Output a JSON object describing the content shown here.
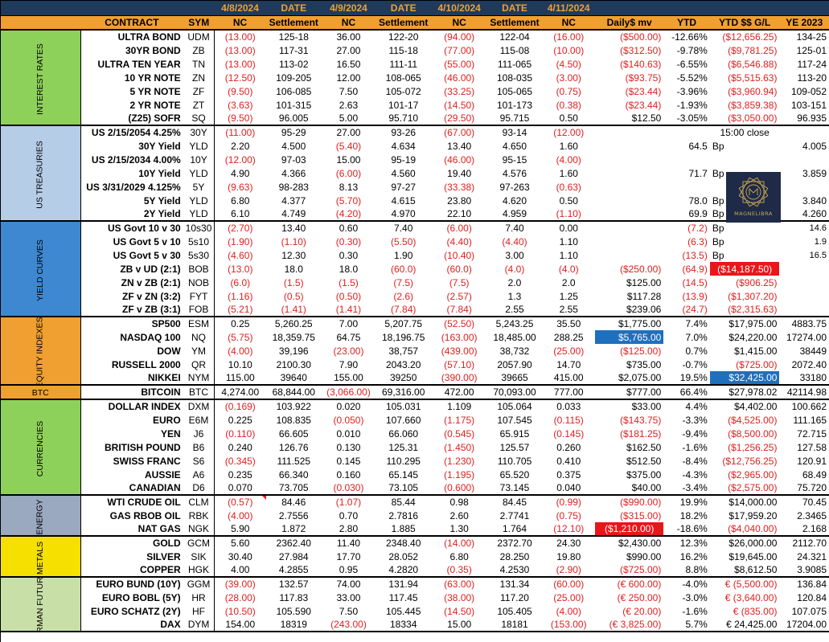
{
  "header": {
    "dates": [
      "4/8/2024",
      "DATE",
      "4/9/2024",
      "DATE",
      "4/10/2024",
      "DATE",
      "4/11/2024"
    ],
    "columns": [
      "CONTRACT",
      "SYM",
      "NC",
      "Settlement",
      "NC",
      "Settlement",
      "NC",
      "Settlement",
      "NC",
      "Daily$ mv",
      "YTD",
      "YTD $$ G/L",
      "YE 2023"
    ]
  },
  "categories": [
    {
      "label": "INTEREST RATES",
      "color": "#8ed15a"
    },
    {
      "label": "US TREASURIES",
      "color": "#b6cde8"
    },
    {
      "label": "YIELD CURVES",
      "color": "#3d88d0"
    },
    {
      "label": "EQUITY INDEXES",
      "color": "#f0a030"
    },
    {
      "label": "BTC",
      "color": "#f0a030"
    },
    {
      "label": "CURRENCIES",
      "color": "#8ed15a"
    },
    {
      "label": "ENERGY",
      "color": "#9aa8c0"
    },
    {
      "label": "METALS",
      "color": "#f5e000"
    },
    {
      "label": "GERMAN FUTURES",
      "color": "#c8e0a8"
    }
  ],
  "logo": {
    "text": "MAGNELIBRA",
    "icon": "magnelibra-logo-icon"
  },
  "rows": [
    {
      "g": 0,
      "c": [
        "ULTRA BOND",
        "UDM",
        "(13.00)",
        "125-18",
        "36.00",
        "122-20",
        "(94.00)",
        "122-04",
        "(16.00)",
        "($500.00)",
        "-12.66%",
        "($12,656.25)",
        "134-25"
      ]
    },
    {
      "g": 0,
      "c": [
        "30YR BOND",
        "ZB",
        "(13.00)",
        "117-31",
        "27.00",
        "115-18",
        "(77.00)",
        "115-08",
        "(10.00)",
        "($312.50)",
        "-9.78%",
        "($9,781.25)",
        "125-01"
      ]
    },
    {
      "g": 0,
      "c": [
        "ULTRA TEN YEAR",
        "TN",
        "(13.00)",
        "113-02",
        "16.50",
        "111-11",
        "(55.00)",
        "111-065",
        "(4.50)",
        "($140.63)",
        "-6.55%",
        "($6,546.88)",
        "117-24"
      ]
    },
    {
      "g": 0,
      "c": [
        "10 YR NOTE",
        "ZN",
        "(12.50)",
        "109-205",
        "12.00",
        "108-065",
        "(46.00)",
        "108-035",
        "(3.00)",
        "($93.75)",
        "-5.52%",
        "($5,515.63)",
        "113-20"
      ]
    },
    {
      "g": 0,
      "c": [
        "5 YR NOTE",
        "ZF",
        "(9.50)",
        "106-085",
        "7.50",
        "105-072",
        "(33.25)",
        "105-065",
        "(0.75)",
        "($23.44)",
        "-3.96%",
        "($3,960.94)",
        "109-052"
      ]
    },
    {
      "g": 0,
      "c": [
        "2 YR NOTE",
        "ZT",
        "(3.63)",
        "101-315",
        "2.63",
        "101-17",
        "(14.50)",
        "101-173",
        "(0.38)",
        "($23.44)",
        "-1.93%",
        "($3,859.38)",
        "103-151"
      ]
    },
    {
      "g": 0,
      "c": [
        "(Z25) SOFR",
        "SQ",
        "(9.50)",
        "96.005",
        "5.00",
        "95.710",
        "(29.50)",
        "95.715",
        "0.50",
        "$12.50",
        "-3.05%",
        "($3,050.00)",
        "96.935"
      ]
    },
    {
      "g": 1,
      "c": [
        "US 2/15/2054 4.25%",
        "30Y",
        "(11.00)",
        "95-29",
        "27.00",
        "93-26",
        "(67.00)",
        "93-14",
        "(12.00)",
        "",
        "",
        "15:00 close",
        ""
      ]
    },
    {
      "g": 1,
      "c": [
        "30Y Yield",
        "YLD",
        "2.20",
        "4.500",
        "(5.40)",
        "4.634",
        "13.40",
        "4.650",
        "1.60",
        "",
        "",
        "",
        ""
      ]
    },
    {
      "g": 1,
      "c": [
        "US 2/15/2034 4.00%",
        "10Y",
        "(12.00)",
        "97-03",
        "15.00",
        "95-19",
        "(46.00)",
        "95-15",
        "(4.00)",
        "",
        "",
        "",
        ""
      ]
    },
    {
      "g": 1,
      "c": [
        "10Y Yield",
        "YLD",
        "4.90",
        "4.366",
        "(6.00)",
        "4.560",
        "19.40",
        "4.576",
        "1.60",
        "",
        "",
        "",
        ""
      ]
    },
    {
      "g": 1,
      "c": [
        "US 3/31/2029 4.125%",
        "5Y",
        "(9.63)",
        "98-283",
        "8.13",
        "97-27",
        "(33.38)",
        "97-263",
        "(0.63)",
        "",
        "",
        "",
        ""
      ]
    },
    {
      "g": 1,
      "c": [
        "5Y Yield",
        "YLD",
        "6.80",
        "4.377",
        "(5.70)",
        "4.615",
        "23.80",
        "4.620",
        "0.50",
        "",
        "",
        "",
        ""
      ]
    },
    {
      "g": 1,
      "c": [
        "2Y Yield",
        "YLD",
        "6.10",
        "4.749",
        "(4.20)",
        "4.970",
        "22.10",
        "4.959",
        "(1.10)",
        "",
        "",
        "",
        ""
      ]
    },
    {
      "g": 2,
      "c": [
        "US Govt 10 v 30",
        "10s30",
        "(2.70)",
        "13.40",
        "0.60",
        "7.40",
        "(6.00)",
        "7.40",
        "0.00",
        "",
        "",
        "",
        ""
      ]
    },
    {
      "g": 2,
      "c": [
        "US Govt 5 v 10",
        "5s10",
        "(1.90)",
        "(1.10)",
        "(0.30)",
        "(5.50)",
        "(4.40)",
        "(4.40)",
        "1.10",
        "",
        "",
        "",
        ""
      ]
    },
    {
      "g": 2,
      "c": [
        "US Govt 5 v 30",
        "5s30",
        "(4.60)",
        "12.30",
        "0.30",
        "1.90",
        "(10.40)",
        "3.00",
        "1.10",
        "",
        "",
        "",
        ""
      ]
    },
    {
      "g": 2,
      "c": [
        "ZB v UD (2:1)",
        "BOB",
        "(13.0)",
        "18.0",
        "18.0",
        "(60.0)",
        "(60.0)",
        "(4.0)",
        "(4.0)",
        "($250.00)",
        "(64.9)",
        "($14,187.50)",
        ""
      ]
    },
    {
      "g": 2,
      "c": [
        "ZN v ZB (2:1)",
        "NOB",
        "(6.0)",
        "(1.5)",
        "(1.5)",
        "(7.5)",
        "(7.5)",
        "2.0",
        "2.0",
        "$125.00",
        "(14.5)",
        "($906.25)",
        ""
      ]
    },
    {
      "g": 2,
      "c": [
        "ZF v ZN (3:2)",
        "FYT",
        "(1.16)",
        "(0.5)",
        "(0.50)",
        "(2.6)",
        "(2.57)",
        "1.3",
        "1.25",
        "$117.28",
        "(13.9)",
        "($1,307.20)",
        ""
      ]
    },
    {
      "g": 2,
      "c": [
        "ZF v ZB (3:1)",
        "FOB",
        "(5.21)",
        "(1.41)",
        "(1.41)",
        "(7.84)",
        "(7.84)",
        "2.55",
        "2.55",
        "$239.06",
        "(24.7)",
        "($2,315.63)",
        ""
      ]
    },
    {
      "g": 3,
      "c": [
        "SP500",
        "ESM",
        "0.25",
        "5,260.25",
        "7.00",
        "5,207.75",
        "(52.50)",
        "5,243.25",
        "35.50",
        "$1,775.00",
        "7.4%",
        "$17,975.00",
        "4883.75"
      ]
    },
    {
      "g": 3,
      "c": [
        "NASDAQ 100",
        "NQ",
        "(5.75)",
        "18,359.75",
        "64.75",
        "18,196.75",
        "(163.00)",
        "18,485.00",
        "288.25",
        "$5,765.00",
        "7.0%",
        "$24,220.00",
        "17274.00"
      ]
    },
    {
      "g": 3,
      "c": [
        "DOW",
        "YM",
        "(4.00)",
        "39,196",
        "(23.00)",
        "38,757",
        "(439.00)",
        "38,732",
        "(25.00)",
        "($125.00)",
        "0.7%",
        "$1,415.00",
        "38449"
      ]
    },
    {
      "g": 3,
      "c": [
        "RUSSELL 2000",
        "QR",
        "10.10",
        "2100.30",
        "7.90",
        "2043.20",
        "(57.10)",
        "2057.90",
        "14.70",
        "$735.00",
        "-0.7%",
        "($725.00)",
        "2072.40"
      ]
    },
    {
      "g": 3,
      "c": [
        "NIKKEI",
        "NYM",
        "115.00",
        "39640",
        "155.00",
        "39250",
        "(390.00)",
        "39665",
        "415.00",
        "$2,075.00",
        "19.5%",
        "$32,425.00",
        "33180"
      ]
    },
    {
      "g": 4,
      "c": [
        "BITCOIN",
        "BTC",
        "4,274.00",
        "68,844.00",
        "(3,066.00)",
        "69,316.00",
        "472.00",
        "70,093.00",
        "777.00",
        "$777.00",
        "66.4%",
        "$27,978.02",
        "42114.98"
      ]
    },
    {
      "g": 5,
      "c": [
        "DOLLAR INDEX",
        "DXM",
        "(0.169)",
        "103.922",
        "0.020",
        "105.031",
        "1.109",
        "105.064",
        "0.033",
        "$33.00",
        "4.4%",
        "$4,402.00",
        "100.662"
      ]
    },
    {
      "g": 5,
      "c": [
        "EURO",
        "E6M",
        "0.225",
        "108.835",
        "(0.050)",
        "107.660",
        "(1.175)",
        "107.545",
        "(0.115)",
        "($143.75)",
        "-3.3%",
        "($4,525.00)",
        "111.165"
      ]
    },
    {
      "g": 5,
      "c": [
        "YEN",
        "J6",
        "(0.110)",
        "66.605",
        "0.010",
        "66.060",
        "(0.545)",
        "65.915",
        "(0.145)",
        "($181.25)",
        "-9.4%",
        "($8,500.00)",
        "72.715"
      ]
    },
    {
      "g": 5,
      "c": [
        "BRITISH POUND",
        "B6",
        "0.240",
        "126.76",
        "0.130",
        "125.31",
        "(1.450)",
        "125.57",
        "0.260",
        "$162.50",
        "-1.6%",
        "($1,256.25)",
        "127.58"
      ]
    },
    {
      "g": 5,
      "c": [
        "SWISS FRANC",
        "S6",
        "(0.345)",
        "111.525",
        "0.145",
        "110.295",
        "(1.230)",
        "110.705",
        "0.410",
        "$512.50",
        "-8.4%",
        "($12,756.25)",
        "120.91"
      ]
    },
    {
      "g": 5,
      "c": [
        "AUSSIE",
        "A6",
        "0.235",
        "66.340",
        "0.160",
        "65.145",
        "(1.195)",
        "65.520",
        "0.375",
        "$375.00",
        "-4.3%",
        "($2,965.00)",
        "68.49"
      ]
    },
    {
      "g": 5,
      "c": [
        "CANADIAN",
        "D6",
        "0.070",
        "73.705",
        "(0.030)",
        "73.105",
        "(0.600)",
        "73.145",
        "0.040",
        "$40.00",
        "-3.4%",
        "($2,575.00)",
        "75.720"
      ]
    },
    {
      "g": 6,
      "c": [
        "WTI CRUDE OIL",
        "CLM",
        "(0.57)",
        "84.46",
        "(1.07)",
        "85.44",
        "0.98",
        "84.45",
        "(0.99)",
        "($990.00)",
        "19.9%",
        "$14,000.00",
        "70.45"
      ]
    },
    {
      "g": 6,
      "c": [
        "GAS RBOB OIL",
        "RBK",
        "(4.00)",
        "2.7556",
        "0.70",
        "2.7816",
        "2.60",
        "2.7741",
        "(0.75)",
        "($315.00)",
        "18.2%",
        "$17,959.20",
        "2.3465"
      ]
    },
    {
      "g": 6,
      "c": [
        "NAT GAS",
        "NGK",
        "5.90",
        "1.872",
        "2.80",
        "1.885",
        "1.30",
        "1.764",
        "(12.10)",
        "($1,210.00)",
        "-18.6%",
        "($4,040.00)",
        "2.168"
      ]
    },
    {
      "g": 7,
      "c": [
        "GOLD",
        "GCM",
        "5.60",
        "2362.40",
        "11.40",
        "2348.40",
        "(14.00)",
        "2372.70",
        "24.30",
        "$2,430.00",
        "12.3%",
        "$26,000.00",
        "2112.70"
      ]
    },
    {
      "g": 7,
      "c": [
        "SILVER",
        "SIK",
        "30.40",
        "27.984",
        "17.70",
        "28.052",
        "6.80",
        "28.250",
        "19.80",
        "$990.00",
        "16.2%",
        "$19,645.00",
        "24.321"
      ]
    },
    {
      "g": 7,
      "c": [
        "COPPER",
        "HGK",
        "4.00",
        "4.2855",
        "0.95",
        "4.2820",
        "(0.35)",
        "4.2530",
        "(2.90)",
        "($725.00)",
        "8.8%",
        "$8,612.50",
        "3.9085"
      ]
    },
    {
      "g": 8,
      "c": [
        "EURO BUND (10Y)",
        "GGM",
        "(39.00)",
        "132.57",
        "74.00",
        "131.94",
        "(63.00)",
        "131.34",
        "(60.00)",
        "(€ 600.00)",
        "-4.0%",
        "€      (5,500.00)",
        "136.84"
      ]
    },
    {
      "g": 8,
      "c": [
        "EURO BOBL (5Y)",
        "HR",
        "(28.00)",
        "117.83",
        "33.00",
        "117.45",
        "(38.00)",
        "117.20",
        "(25.00)",
        "(€ 250.00)",
        "-3.0%",
        "€      (3,640.00)",
        "120.84"
      ]
    },
    {
      "g": 8,
      "c": [
        "EURO SCHATZ (2Y)",
        "HF",
        "(10.50)",
        "105.590",
        "7.50",
        "105.445",
        "(14.50)",
        "105.405",
        "(4.00)",
        "(€ 20.00)",
        "-1.6%",
        "€         (835.00)",
        "107.075"
      ]
    },
    {
      "g": 8,
      "c": [
        "DAX",
        "DYM",
        "154.00",
        "18319",
        "(243.00)",
        "18334",
        "15.00",
        "18181",
        "(153.00)",
        "(€ 3,825.00)",
        "5.7%",
        "€      24,425.00",
        "17204.00"
      ]
    }
  ],
  "extras": {
    "yield_rows": [
      {
        "row": 8,
        "ytd": "64.5",
        "unit": "Bp",
        "ye": "4.005"
      },
      {
        "row": 10,
        "ytd": "71.7",
        "unit": "Bp",
        "ye": "3.859"
      },
      {
        "row": 12,
        "ytd": "78.0",
        "unit": "Bp",
        "ye": "3.840"
      },
      {
        "row": 13,
        "ytd": "69.9",
        "unit": "Bp",
        "ye": "4.260"
      },
      {
        "row": 14,
        "ytd": "(7.2)",
        "unit": "Bp",
        "ye": "14.6"
      },
      {
        "row": 15,
        "ytd": "(6.3)",
        "unit": "Bp",
        "ye": "1.9"
      },
      {
        "row": 16,
        "ytd": "(13.5)",
        "unit": "Bp",
        "ye": "16.5"
      }
    ]
  },
  "colors": {
    "header_dark": "#1f3a5a",
    "header_orange": "#f0a030",
    "negative": "#e02020",
    "highlight_blue": "#1f6fbf",
    "highlight_red": "#e8161a"
  }
}
